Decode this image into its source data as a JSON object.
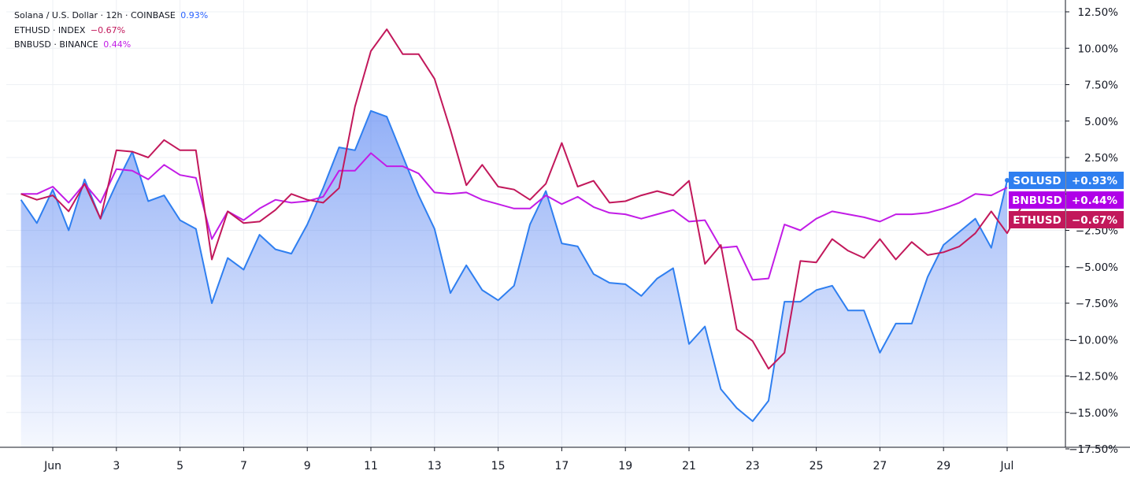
{
  "legend": [
    {
      "label": "Solana / U.S. Dollar · 12h · COINBASE",
      "change": "0.93%",
      "color": "#2962ff"
    },
    {
      "label": "ETHUSD · INDEX",
      "change": "−0.67%",
      "color": "#c2185b"
    },
    {
      "label": "BNBUSD · BINANCE",
      "change": "0.44%",
      "color": "#c21ce6"
    }
  ],
  "badges": [
    {
      "symbol": "SOLUSD",
      "value": "+0.93%",
      "color": "#2f7ff0"
    },
    {
      "symbol": "BNBUSD",
      "value": "+0.44%",
      "color": "#b000e8"
    },
    {
      "symbol": "ETHUSD",
      "value": "−0.67%",
      "color": "#c2185b"
    }
  ],
  "chart_data": {
    "type": "line",
    "title": "",
    "xlabel": "",
    "ylabel": "",
    "ylim": [
      -17.5,
      12.5
    ],
    "yticks": [
      12.5,
      10,
      7.5,
      5,
      2.5,
      0,
      -2.5,
      -5,
      -7.5,
      -10,
      -12.5,
      -15,
      -17.5
    ],
    "ytick_labels": [
      "12.50%",
      "10.00%",
      "7.50%",
      "5.00%",
      "2.50%",
      "",
      "−2.50%",
      "−5.00%",
      "−7.50%",
      "−10.00%",
      "−12.50%",
      "−15.00%",
      "−17.50%"
    ],
    "xlim": [
      0,
      31.5
    ],
    "xticks": [
      {
        "pos": 1,
        "label": "Jun"
      },
      {
        "pos": 3,
        "label": "3"
      },
      {
        "pos": 5,
        "label": "5"
      },
      {
        "pos": 7,
        "label": "7"
      },
      {
        "pos": 9,
        "label": "9"
      },
      {
        "pos": 11,
        "label": "11"
      },
      {
        "pos": 13,
        "label": "13"
      },
      {
        "pos": 15,
        "label": "15"
      },
      {
        "pos": 17,
        "label": "17"
      },
      {
        "pos": 19,
        "label": "19"
      },
      {
        "pos": 21,
        "label": "21"
      },
      {
        "pos": 23,
        "label": "23"
      },
      {
        "pos": 25,
        "label": "25"
      },
      {
        "pos": 27,
        "label": "27"
      },
      {
        "pos": 29,
        "label": "29"
      },
      {
        "pos": 31,
        "label": "Jul"
      }
    ],
    "x_step": 0.5,
    "series": [
      {
        "name": "SOLUSD",
        "color": "#2f7ff0",
        "fill": true,
        "values": [
          -0.4,
          -2.0,
          0.3,
          -2.5,
          1.0,
          -1.7,
          0.7,
          2.9,
          -0.5,
          -0.1,
          -1.8,
          -2.4,
          -7.5,
          -4.4,
          -5.2,
          -2.8,
          -3.8,
          -4.1,
          -2.1,
          0.4,
          3.2,
          3.0,
          5.7,
          5.3,
          2.6,
          -0.1,
          -2.4,
          -6.8,
          -4.9,
          -6.6,
          -7.3,
          -6.3,
          -2.1,
          0.2,
          -3.4,
          -3.6,
          -5.5,
          -6.1,
          -6.2,
          -7.0,
          -5.8,
          -5.1,
          -10.3,
          -9.1,
          -13.4,
          -14.7,
          -15.6,
          -14.2,
          -7.4,
          -7.4,
          -6.6,
          -6.3,
          -8.0,
          -8.0,
          -10.9,
          -8.9,
          -8.9,
          -5.7,
          -3.5,
          -2.6,
          -1.7,
          -3.7,
          0.93
        ]
      },
      {
        "name": "ETHUSD",
        "color": "#c2185b",
        "fill": false,
        "values": [
          0.0,
          -0.4,
          -0.1,
          -1.2,
          0.7,
          -1.7,
          3.0,
          2.9,
          2.5,
          3.7,
          3.0,
          3.0,
          -4.5,
          -1.2,
          -2.0,
          -1.9,
          -1.1,
          0.0,
          -0.4,
          -0.6,
          0.4,
          6.0,
          9.8,
          11.3,
          9.6,
          9.6,
          7.9,
          4.4,
          0.6,
          2.0,
          0.5,
          0.3,
          -0.4,
          0.7,
          3.5,
          0.5,
          0.9,
          -0.6,
          -0.5,
          -0.1,
          0.2,
          -0.1,
          0.9,
          -4.8,
          -3.5,
          -9.3,
          -10.1,
          -12.0,
          -10.9,
          -4.6,
          -4.7,
          -3.1,
          -3.9,
          -4.4,
          -3.1,
          -4.5,
          -3.3,
          -4.2,
          -4.0,
          -3.6,
          -2.7,
          -1.2,
          -2.7,
          -0.67
        ]
      },
      {
        "name": "BNBUSD",
        "color": "#c21ce6",
        "fill": false,
        "values": [
          0.0,
          0.0,
          0.5,
          -0.6,
          0.7,
          -0.6,
          1.7,
          1.6,
          1.0,
          2.0,
          1.3,
          1.1,
          -3.1,
          -1.2,
          -1.8,
          -1.0,
          -0.4,
          -0.6,
          -0.5,
          -0.2,
          1.6,
          1.6,
          2.8,
          1.9,
          1.9,
          1.4,
          0.1,
          0.0,
          0.1,
          -0.4,
          -0.7,
          -1.0,
          -1.0,
          -0.1,
          -0.7,
          -0.2,
          -0.9,
          -1.3,
          -1.4,
          -1.7,
          -1.4,
          -1.1,
          -1.9,
          -1.8,
          -3.7,
          -3.6,
          -5.9,
          -5.8,
          -2.1,
          -2.5,
          -1.7,
          -1.2,
          -1.4,
          -1.6,
          -1.9,
          -1.4,
          -1.4,
          -1.3,
          -1.0,
          -0.6,
          0.0,
          -0.1,
          0.44
        ]
      }
    ]
  }
}
